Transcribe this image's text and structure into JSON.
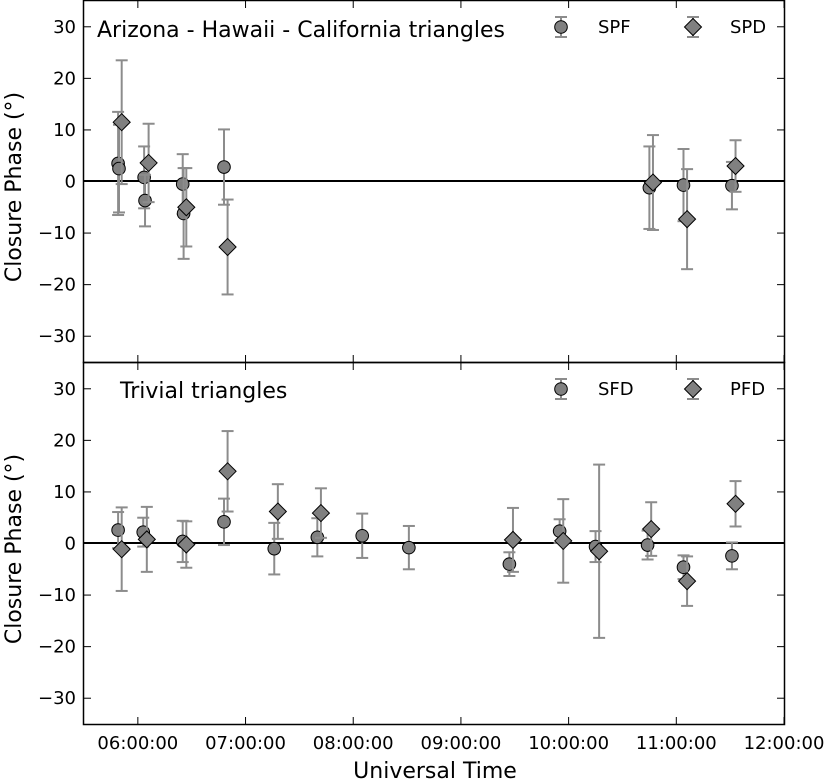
{
  "chart_data": [
    {
      "type": "scatter",
      "title": "Arizona - Hawaii - California triangles",
      "xlabel": "Universal Time",
      "ylabel": "Closure Phase (°)",
      "xlim": [
        "05:30:00",
        "12:00:00"
      ],
      "ylim": [
        -35,
        35
      ],
      "yticks": [
        -30,
        -20,
        -10,
        0,
        10,
        20,
        30
      ],
      "zero_line": true,
      "legend": "top-right",
      "series": [
        {
          "name": "SPF",
          "marker": "circle",
          "points": [
            {
              "t": "05:49:00",
              "y": 3.5,
              "err": 10
            },
            {
              "t": "05:49:30",
              "y": 2.5,
              "err": 8.5
            },
            {
              "t": "06:03:30",
              "y": 0.8,
              "err": 6
            },
            {
              "t": "06:04:00",
              "y": -3.7,
              "err": 5
            },
            {
              "t": "06:25:00",
              "y": -0.5,
              "err": 5.8
            },
            {
              "t": "06:25:30",
              "y": -6.2,
              "err": 8.8
            },
            {
              "t": "06:48:00",
              "y": 2.8,
              "err": 7.3
            },
            {
              "t": "10:45:00",
              "y": -1.2,
              "err": 8
            },
            {
              "t": "11:04:00",
              "y": -0.7,
              "err": 7
            },
            {
              "t": "11:31:00",
              "y": -0.8,
              "err": 4.6
            }
          ]
        },
        {
          "name": "SPD",
          "marker": "diamond",
          "points": [
            {
              "t": "05:51:00",
              "y": 11.5,
              "err": 12
            },
            {
              "t": "06:06:00",
              "y": 3.6,
              "err": 7.6
            },
            {
              "t": "06:27:00",
              "y": -5,
              "err": 7.6
            },
            {
              "t": "06:50:00",
              "y": -12.7,
              "err": 9.2
            },
            {
              "t": "10:47:00",
              "y": -0.2,
              "err": 9.2
            },
            {
              "t": "11:06:00",
              "y": -7.3,
              "err": 9.7
            },
            {
              "t": "11:33:00",
              "y": 3,
              "err": 5
            }
          ]
        }
      ]
    },
    {
      "type": "scatter",
      "title": "Trivial triangles",
      "xlabel": "Universal Time",
      "ylabel": "Closure Phase (°)",
      "xlim": [
        "05:30:00",
        "12:00:00"
      ],
      "ylim": [
        -35,
        35
      ],
      "yticks": [
        -30,
        -20,
        -10,
        0,
        10,
        20,
        30
      ],
      "xticks": [
        "06:00:00",
        "07:00:00",
        "08:00:00",
        "09:00:00",
        "10:00:00",
        "11:00:00",
        "12:00:00"
      ],
      "zero_line": true,
      "legend": "top-right",
      "series": [
        {
          "name": "SFD",
          "marker": "circle",
          "points": [
            {
              "t": "05:49:00",
              "y": 2.6,
              "err": 3.5
            },
            {
              "t": "06:03:00",
              "y": 2.2,
              "err": 2.8
            },
            {
              "t": "06:25:00",
              "y": 0.4,
              "err": 4
            },
            {
              "t": "06:48:00",
              "y": 4.2,
              "err": 4.5
            },
            {
              "t": "07:16:00",
              "y": -1,
              "err": 5
            },
            {
              "t": "07:40:00",
              "y": 1.2,
              "err": 3.7
            },
            {
              "t": "08:05:00",
              "y": 1.5,
              "err": 4.3
            },
            {
              "t": "08:31:00",
              "y": -0.8,
              "err": 4.2
            },
            {
              "t": "09:27:00",
              "y": -4,
              "err": 2.3
            },
            {
              "t": "09:55:00",
              "y": 2.4,
              "err": 2.3
            },
            {
              "t": "10:15:00",
              "y": -0.6,
              "err": 3
            },
            {
              "t": "10:44:00",
              "y": -0.3,
              "err": 2.8
            },
            {
              "t": "11:04:00",
              "y": -4.6,
              "err": 2.3
            },
            {
              "t": "11:31:00",
              "y": -2.4,
              "err": 2.6
            }
          ]
        },
        {
          "name": "PFD",
          "marker": "diamond",
          "points": [
            {
              "t": "05:51:00",
              "y": -1.1,
              "err": 8.1
            },
            {
              "t": "06:05:00",
              "y": 0.8,
              "err": 6.3
            },
            {
              "t": "06:27:00",
              "y": -0.2,
              "err": 4.5
            },
            {
              "t": "06:50:00",
              "y": 14,
              "err": 7.8
            },
            {
              "t": "07:18:00",
              "y": 6.2,
              "err": 5.3
            },
            {
              "t": "07:42:00",
              "y": 5.9,
              "err": 4.8
            },
            {
              "t": "09:29:00",
              "y": 0.7,
              "err": 6.2
            },
            {
              "t": "09:57:00",
              "y": 0.5,
              "err": 8.1
            },
            {
              "t": "10:17:00",
              "y": -1.5,
              "err": 16.8
            },
            {
              "t": "10:46:00",
              "y": 2.8,
              "err": 5.2
            },
            {
              "t": "11:06:00",
              "y": -7.3,
              "err": 4.8
            },
            {
              "t": "11:33:00",
              "y": 7.7,
              "err": 4.4
            }
          ]
        }
      ]
    }
  ]
}
